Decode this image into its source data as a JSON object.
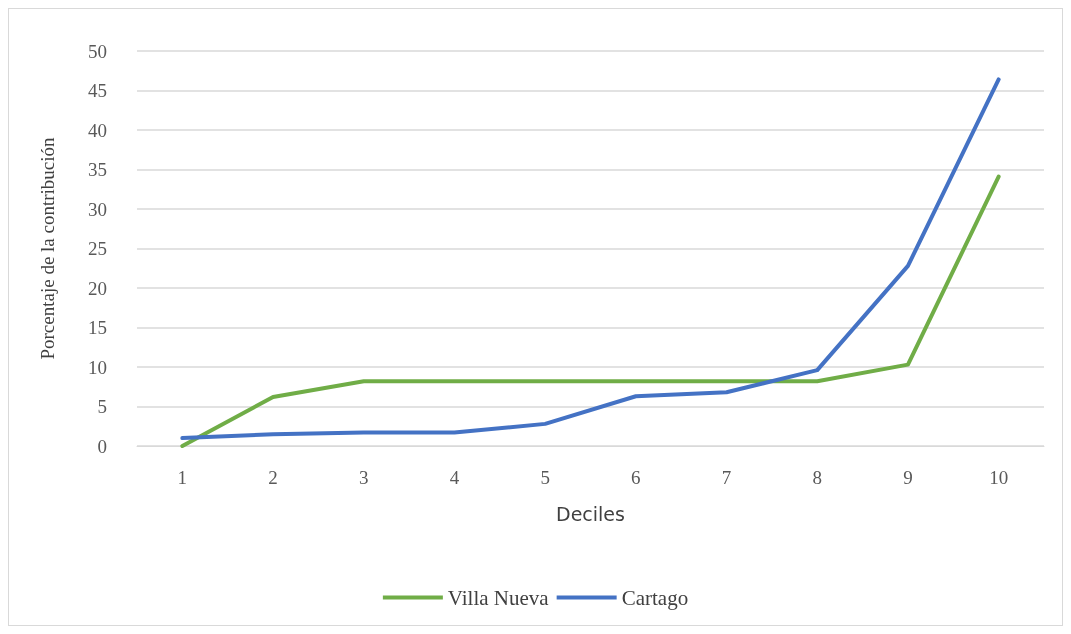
{
  "chart_data": {
    "type": "line",
    "xlabel": "Deciles",
    "ylabel": "Porcentaje de la contribución",
    "categories": [
      "1",
      "2",
      "3",
      "4",
      "5",
      "6",
      "7",
      "8",
      "9",
      "10"
    ],
    "series": [
      {
        "name": "Villa Nueva",
        "color": "#70ad47",
        "values": [
          0,
          6.2,
          8.2,
          8.2,
          8.2,
          8.2,
          8.2,
          8.2,
          10.3,
          34.1
        ]
      },
      {
        "name": "Cartago",
        "color": "#4472c4",
        "values": [
          1.0,
          1.5,
          1.7,
          1.7,
          2.8,
          6.3,
          6.8,
          9.6,
          22.8,
          46.4
        ]
      }
    ],
    "ylim": [
      0,
      50
    ],
    "yticks": [
      0,
      5,
      10,
      15,
      20,
      25,
      30,
      35,
      40,
      45,
      50
    ],
    "grid": "y",
    "legend": "bottom",
    "marker": "none",
    "line_style": "solid"
  }
}
